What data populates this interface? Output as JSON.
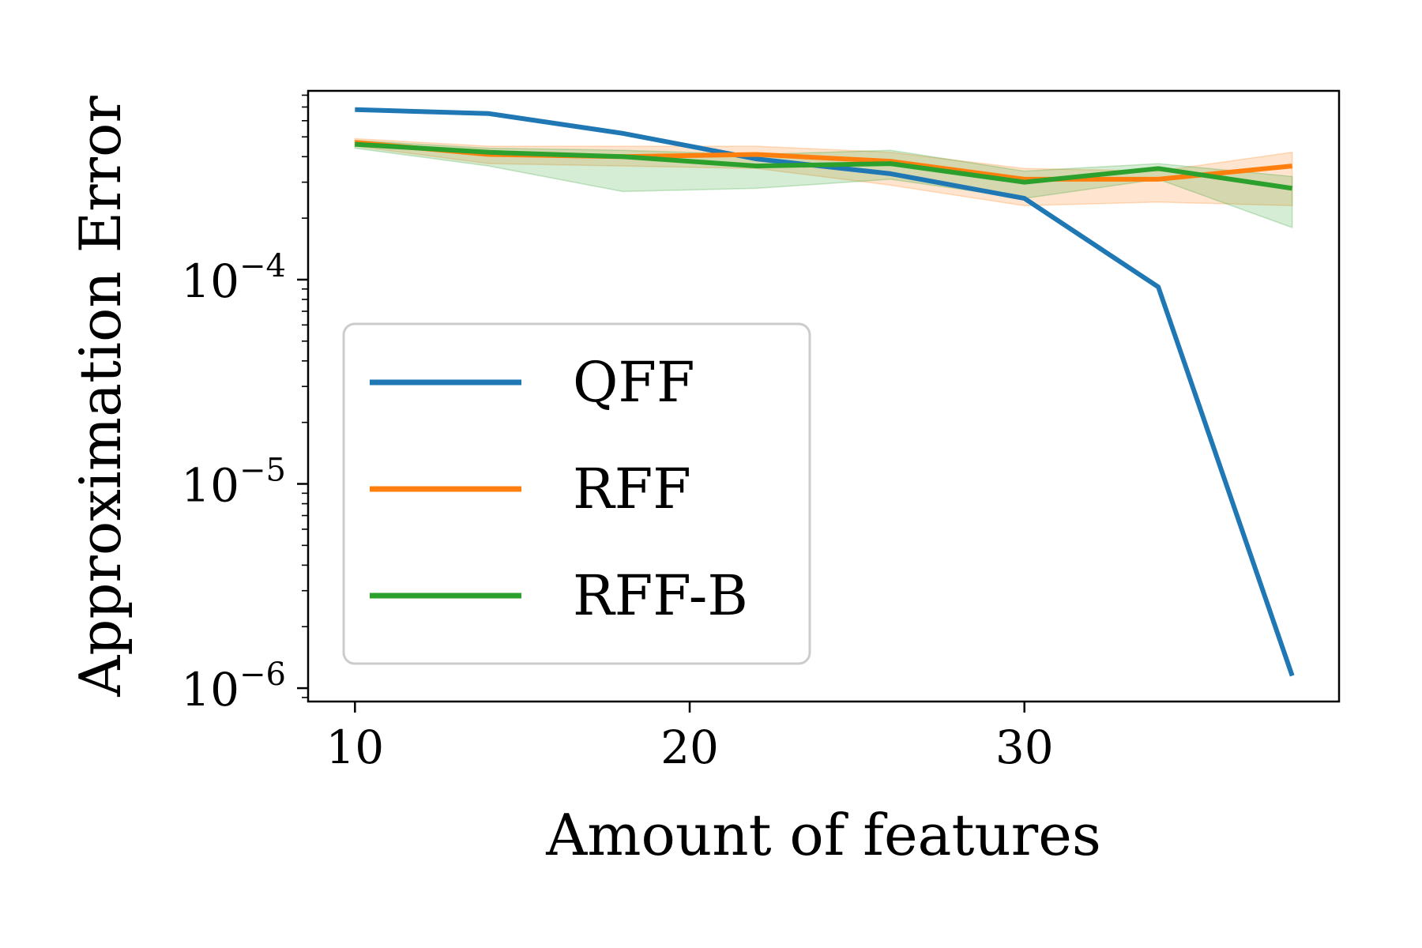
{
  "chart_data": {
    "type": "line",
    "xlabel": "Amount of features",
    "ylabel": "Approximation Error",
    "yscale": "log",
    "xlim": [
      8.6,
      39.4
    ],
    "ylim": [
      8.6e-07,
      0.00084
    ],
    "xticks": [
      10,
      20,
      30
    ],
    "xtick_labels": [
      "10",
      "20",
      "30"
    ],
    "yticks": [
      1e-06,
      1e-05,
      0.0001
    ],
    "ytick_labels": [
      {
        "base": "10",
        "exp": "−6"
      },
      {
        "base": "10",
        "exp": "−5"
      },
      {
        "base": "10",
        "exp": "−4"
      }
    ],
    "legend_position": "center-left",
    "x": [
      10,
      14,
      18,
      22,
      26,
      30,
      34,
      38
    ],
    "series": [
      {
        "name": "QFF",
        "color": "#1f77b4",
        "values": [
          0.00068,
          0.00065,
          0.00052,
          0.00039,
          0.00033,
          0.00025,
          9.2e-05,
          1.15e-06
        ]
      },
      {
        "name": "RFF",
        "color": "#ff7f0e",
        "values": [
          0.00047,
          0.00041,
          0.0004,
          0.00041,
          0.00038,
          0.00031,
          0.00031,
          0.00036
        ],
        "band_low": [
          0.00045,
          0.00037,
          0.00036,
          0.00035,
          0.00029,
          0.00023,
          0.00024,
          0.00023
        ],
        "band_high": [
          0.00049,
          0.00045,
          0.00045,
          0.00045,
          0.00042,
          0.00035,
          0.00034,
          0.00042
        ]
      },
      {
        "name": "RFF-B",
        "color": "#2ca02c",
        "values": [
          0.00046,
          0.00042,
          0.0004,
          0.00036,
          0.00037,
          0.0003,
          0.00035,
          0.00028
        ],
        "band_low": [
          0.00044,
          0.00036,
          0.00027,
          0.00028,
          0.00031,
          0.00025,
          0.00031,
          0.00018
        ],
        "band_high": [
          0.00048,
          0.00044,
          0.00043,
          0.00041,
          0.00043,
          0.00034,
          0.00037,
          0.00032
        ]
      }
    ]
  }
}
